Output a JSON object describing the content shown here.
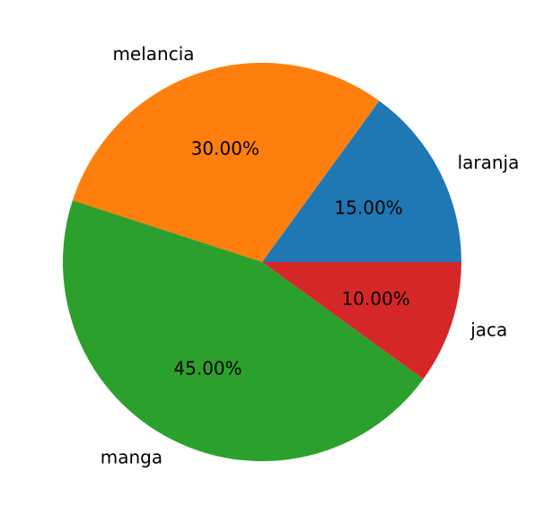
{
  "chart_data": {
    "type": "pie",
    "categories": [
      "laranja",
      "melancia",
      "manga",
      "jaca"
    ],
    "values": [
      15,
      30,
      45,
      10
    ],
    "percent_labels": [
      "15.00%",
      "30.00%",
      "45.00%",
      "10.00%"
    ],
    "colors": [
      "#1f77b4",
      "#ff7f0e",
      "#2ca02c",
      "#d62728"
    ],
    "start_angle_deg": 0,
    "direction": "counterclockwise",
    "title": ""
  }
}
